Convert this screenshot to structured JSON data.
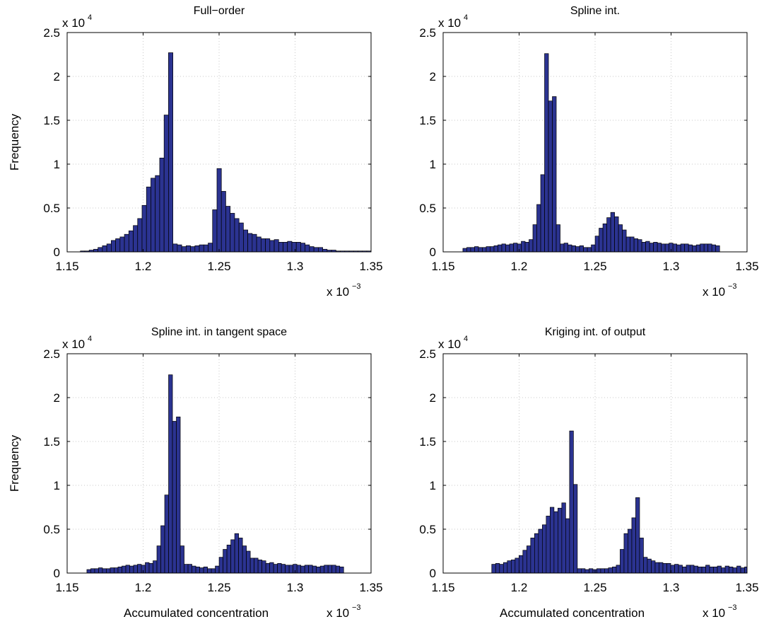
{
  "figure": {
    "bar_color": "#2b3391",
    "edge_color": "#000000",
    "grid_color": "#c8c8c8"
  },
  "chart_data": [
    {
      "type": "bar",
      "title": "Full−order",
      "ylabel": "Frequency",
      "xlabel": "",
      "x_multiplier": "x 10",
      "x_exponent": "−3",
      "y_multiplier": "x 10",
      "y_exponent": "4",
      "xlim": [
        1.15,
        1.35
      ],
      "ylim": [
        0,
        2.5
      ],
      "xticks": [
        "1.15",
        "1.2",
        "1.25",
        "1.3",
        "1.35"
      ],
      "yticks": [
        "0",
        "0.5",
        "1",
        "1.5",
        "2",
        "2.5"
      ],
      "grid": true,
      "bin_start": 1.15,
      "bin_width": 0.0029,
      "values": [
        0,
        0,
        0,
        0.01,
        0.01,
        0.02,
        0.03,
        0.05,
        0.07,
        0.09,
        0.13,
        0.15,
        0.17,
        0.2,
        0.24,
        0.3,
        0.38,
        0.53,
        0.74,
        0.84,
        0.87,
        1.07,
        1.56,
        2.27,
        0.09,
        0.08,
        0.06,
        0.07,
        0.06,
        0.07,
        0.08,
        0.08,
        0.1,
        0.48,
        0.95,
        0.69,
        0.52,
        0.44,
        0.38,
        0.33,
        0.25,
        0.21,
        0.2,
        0.17,
        0.15,
        0.15,
        0.13,
        0.14,
        0.11,
        0.11,
        0.12,
        0.11,
        0.11,
        0.1,
        0.08,
        0.06,
        0.05,
        0.05,
        0.03,
        0.02,
        0.02,
        0.01,
        0.01,
        0.01,
        0.01,
        0.01,
        0.01,
        0.01,
        0.01
      ]
    },
    {
      "type": "bar",
      "title": "Spline int.",
      "ylabel": "",
      "xlabel": "",
      "x_multiplier": "x 10",
      "x_exponent": "−3",
      "y_multiplier": "x 10",
      "y_exponent": "4",
      "xlim": [
        1.15,
        1.35
      ],
      "ylim": [
        0,
        2.5
      ],
      "xticks": [
        "1.15",
        "1.2",
        "1.25",
        "1.3",
        "1.35"
      ],
      "yticks": [
        "0",
        "0.5",
        "1",
        "1.5",
        "2",
        "2.5"
      ],
      "grid": true,
      "bin_start": 1.163,
      "bin_width": 0.00256,
      "values": [
        0.04,
        0.05,
        0.05,
        0.06,
        0.05,
        0.05,
        0.06,
        0.06,
        0.07,
        0.08,
        0.09,
        0.08,
        0.09,
        0.1,
        0.09,
        0.12,
        0.11,
        0.14,
        0.31,
        0.54,
        0.88,
        2.26,
        1.72,
        1.77,
        0.31,
        0.09,
        0.1,
        0.08,
        0.07,
        0.06,
        0.07,
        0.05,
        0.05,
        0.08,
        0.18,
        0.27,
        0.32,
        0.39,
        0.45,
        0.4,
        0.31,
        0.25,
        0.17,
        0.17,
        0.15,
        0.14,
        0.11,
        0.12,
        0.1,
        0.11,
        0.1,
        0.09,
        0.09,
        0.1,
        0.09,
        0.08,
        0.09,
        0.09,
        0.08,
        0.07,
        0.08,
        0.09,
        0.09,
        0.09,
        0.08,
        0.07
      ]
    },
    {
      "type": "bar",
      "title": "Spline int. in tangent space",
      "ylabel": "Frequency",
      "xlabel": "Accumulated concentration",
      "x_multiplier": "x 10",
      "x_exponent": "−3",
      "y_multiplier": "x 10",
      "y_exponent": "4",
      "xlim": [
        1.15,
        1.35
      ],
      "ylim": [
        0,
        2.5
      ],
      "xticks": [
        "1.15",
        "1.2",
        "1.25",
        "1.3",
        "1.35"
      ],
      "yticks": [
        "0",
        "0.5",
        "1",
        "1.5",
        "2",
        "2.5"
      ],
      "grid": true,
      "bin_start": 1.163,
      "bin_width": 0.00256,
      "values": [
        0.04,
        0.05,
        0.05,
        0.06,
        0.05,
        0.05,
        0.06,
        0.06,
        0.07,
        0.08,
        0.09,
        0.08,
        0.09,
        0.1,
        0.09,
        0.12,
        0.11,
        0.14,
        0.31,
        0.54,
        0.89,
        2.26,
        1.73,
        1.78,
        0.31,
        0.1,
        0.1,
        0.08,
        0.07,
        0.06,
        0.07,
        0.05,
        0.05,
        0.08,
        0.18,
        0.27,
        0.32,
        0.38,
        0.45,
        0.4,
        0.31,
        0.25,
        0.17,
        0.17,
        0.15,
        0.14,
        0.11,
        0.12,
        0.1,
        0.11,
        0.1,
        0.09,
        0.09,
        0.1,
        0.09,
        0.08,
        0.09,
        0.09,
        0.08,
        0.07,
        0.08,
        0.09,
        0.09,
        0.09,
        0.08,
        0.07
      ]
    },
    {
      "type": "bar",
      "title": "Kriging int. of output",
      "ylabel": "",
      "xlabel": "Accumulated concentration",
      "x_multiplier": "x 10",
      "x_exponent": "−3",
      "y_multiplier": "x 10",
      "y_exponent": "4",
      "xlim": [
        1.15,
        1.35
      ],
      "ylim": [
        0,
        2.5
      ],
      "xticks": [
        "1.15",
        "1.2",
        "1.25",
        "1.3",
        "1.35"
      ],
      "yticks": [
        "0",
        "0.5",
        "1",
        "1.5",
        "2",
        "2.5"
      ],
      "grid": true,
      "bin_start": 1.182,
      "bin_width": 0.00256,
      "values": [
        0.1,
        0.11,
        0.1,
        0.12,
        0.14,
        0.15,
        0.17,
        0.2,
        0.26,
        0.31,
        0.4,
        0.45,
        0.5,
        0.55,
        0.65,
        0.75,
        0.7,
        0.74,
        0.8,
        0.62,
        1.62,
        1.01,
        0.05,
        0.05,
        0.04,
        0.05,
        0.04,
        0.05,
        0.05,
        0.05,
        0.06,
        0.07,
        0.09,
        0.27,
        0.45,
        0.5,
        0.63,
        0.86,
        0.4,
        0.18,
        0.16,
        0.14,
        0.12,
        0.12,
        0.11,
        0.11,
        0.09,
        0.1,
        0.09,
        0.07,
        0.09,
        0.09,
        0.08,
        0.07,
        0.07,
        0.09,
        0.07,
        0.07,
        0.08,
        0.06,
        0.08,
        0.07,
        0.06,
        0.08,
        0.06,
        0.07
      ]
    }
  ]
}
